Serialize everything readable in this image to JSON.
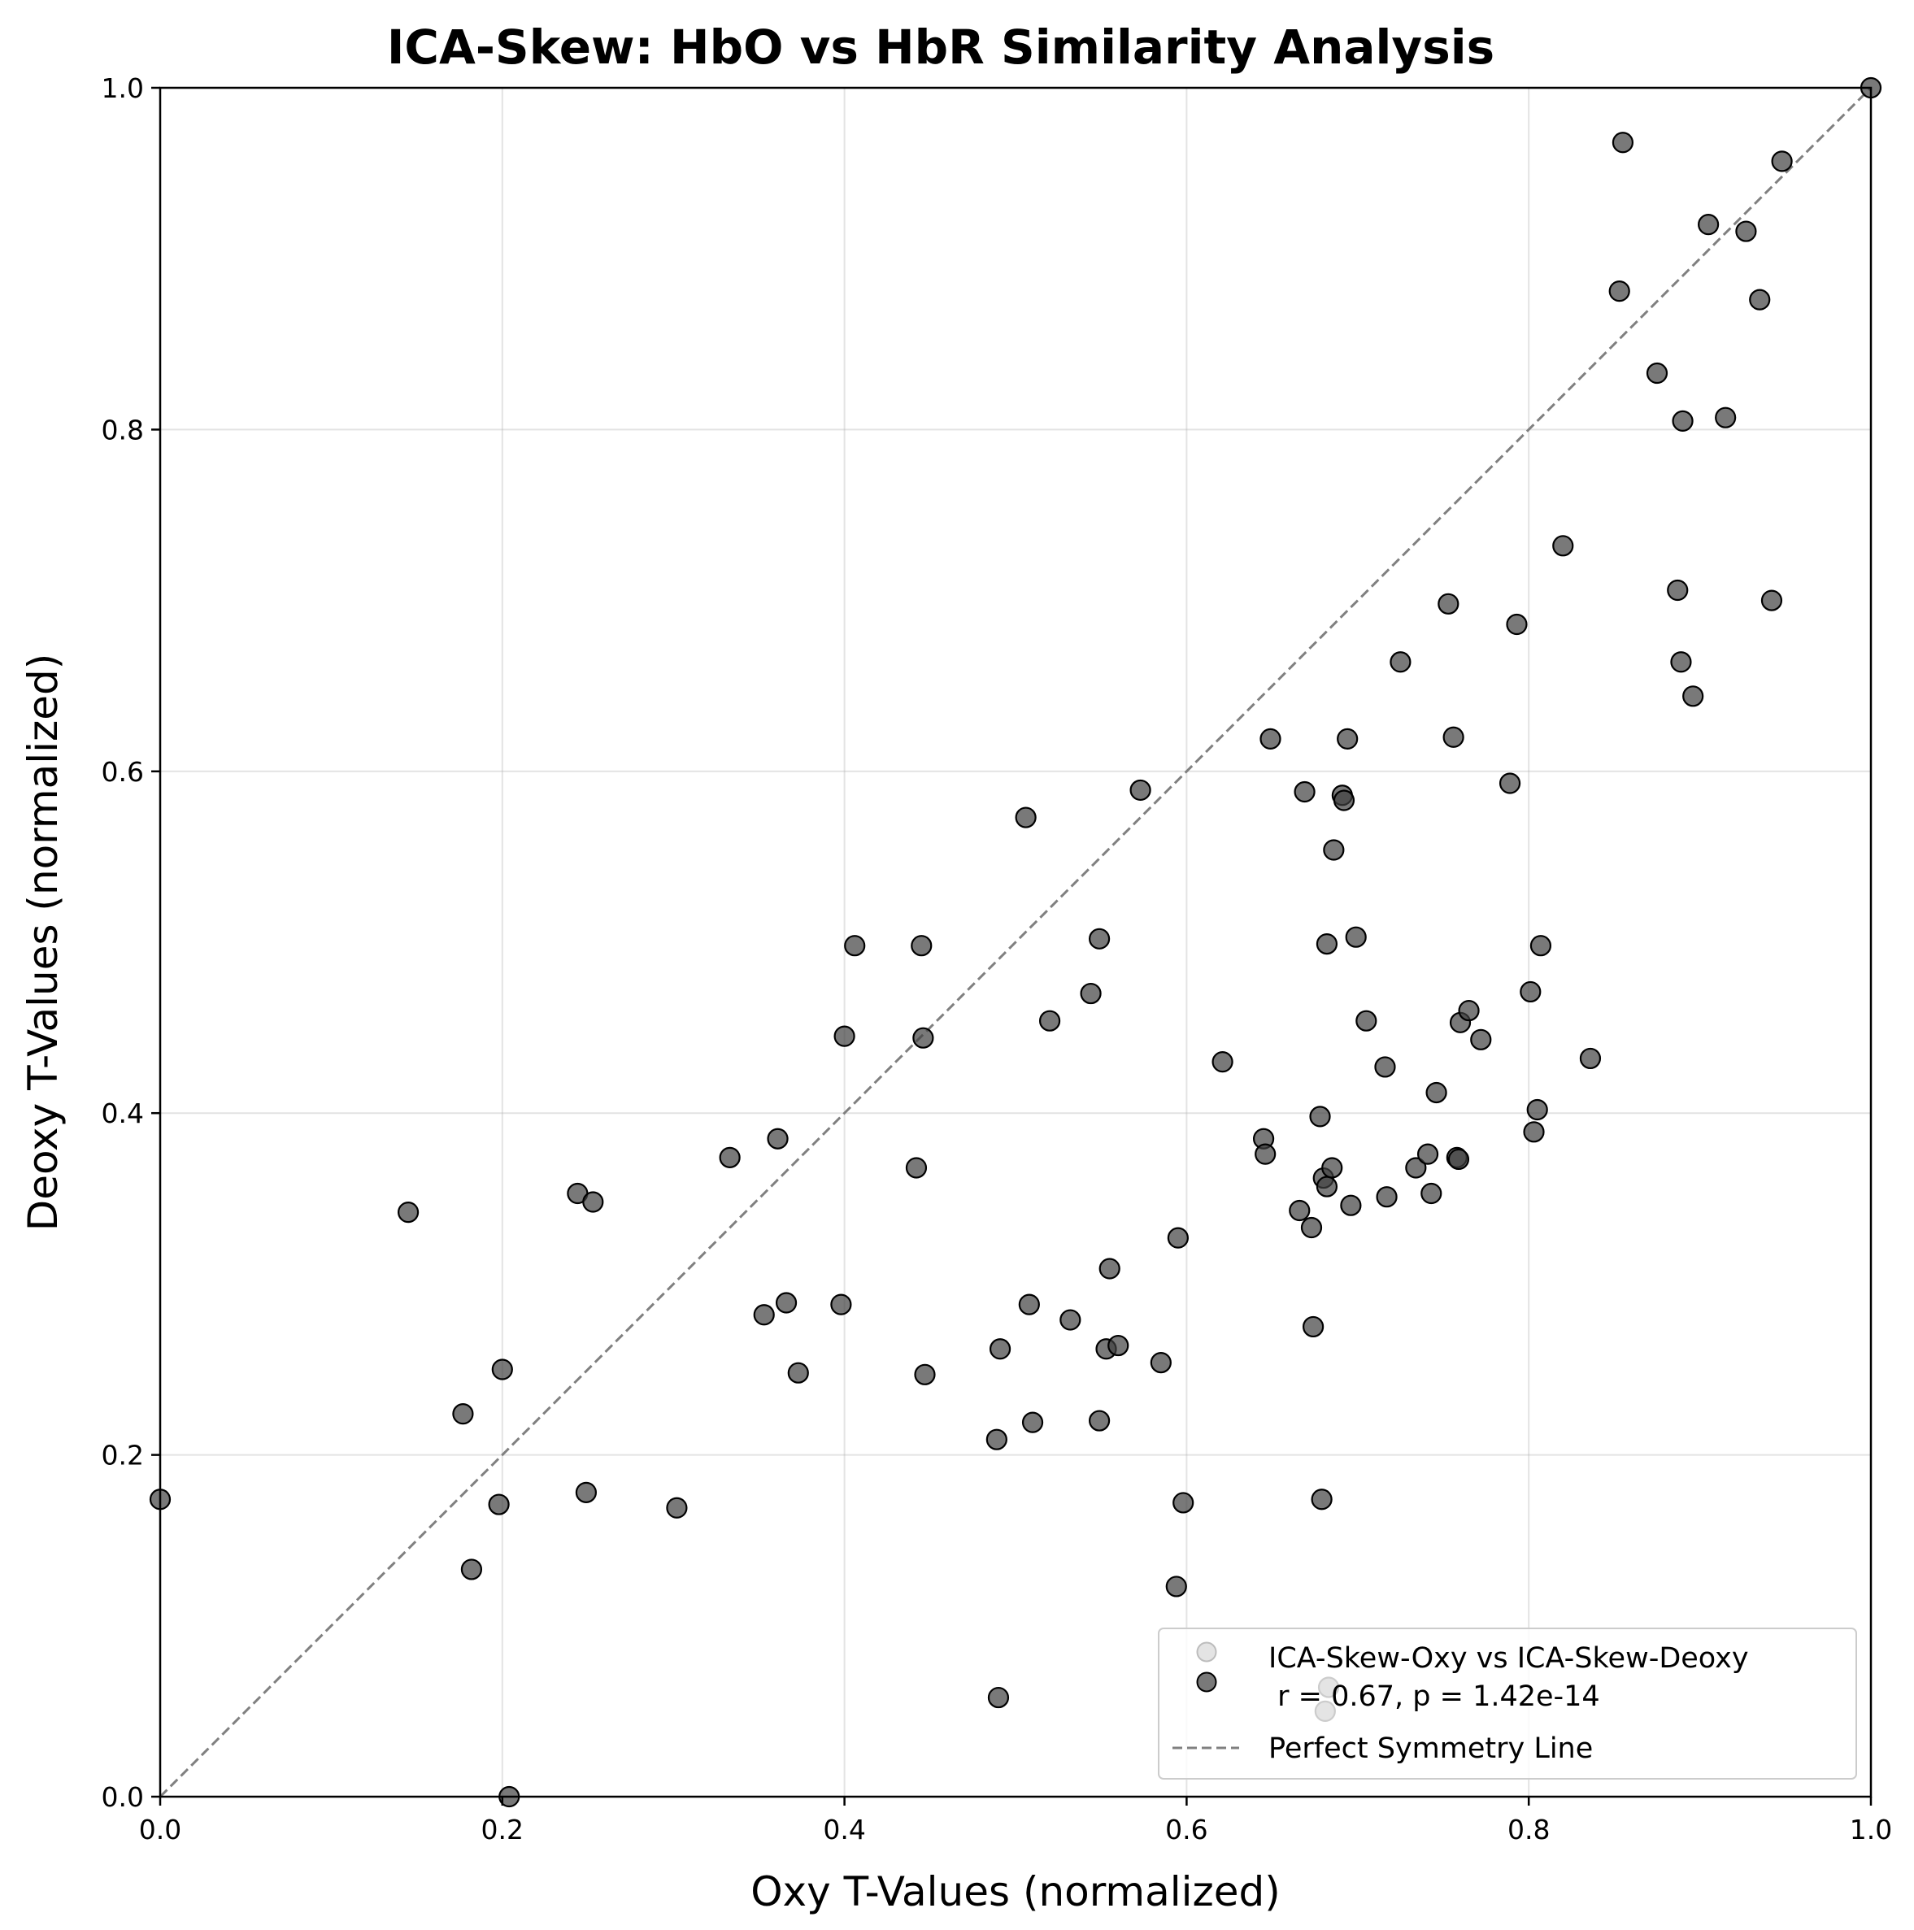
{
  "chart_data": {
    "type": "scatter",
    "title": "ICA-Skew: HbO vs HbR Similarity Analysis",
    "xlabel": "Oxy T-Values (normalized)",
    "ylabel": "Deoxy T-Values (normalized)",
    "xlim": [
      0,
      1
    ],
    "ylim": [
      0,
      1
    ],
    "xticks": [
      "0.0",
      "0.2",
      "0.4",
      "0.6",
      "0.8",
      "1.0"
    ],
    "yticks": [
      "0.0",
      "0.2",
      "0.4",
      "0.6",
      "0.8",
      "1.0"
    ],
    "grid": true,
    "legend_position": "bottom-right",
    "legend": {
      "series_label": "ICA-Skew-Oxy vs ICA-Skew-Deoxy",
      "stats_label": " r = 0.67, p = 1.42e-14",
      "line_label": "Perfect Symmetry Line"
    },
    "point_color": "#404040",
    "point_opacity": 0.7,
    "line_color": "#808080",
    "series": [
      {
        "points": [
          [
            0.0,
            0.174
          ],
          [
            0.145,
            0.342
          ],
          [
            0.177,
            0.224
          ],
          [
            0.182,
            0.133
          ],
          [
            0.198,
            0.171
          ],
          [
            0.2,
            0.25
          ],
          [
            0.204,
            0.0
          ],
          [
            0.244,
            0.353
          ],
          [
            0.249,
            0.178
          ],
          [
            0.253,
            0.348
          ],
          [
            0.302,
            0.169
          ],
          [
            0.333,
            0.374
          ],
          [
            0.353,
            0.282
          ],
          [
            0.361,
            0.385
          ],
          [
            0.366,
            0.289
          ],
          [
            0.373,
            0.248
          ],
          [
            0.398,
            0.288
          ],
          [
            0.4,
            0.445
          ],
          [
            0.406,
            0.498
          ],
          [
            0.442,
            0.368
          ],
          [
            0.445,
            0.498
          ],
          [
            0.446,
            0.444
          ],
          [
            0.447,
            0.247
          ],
          [
            0.489,
            0.209
          ],
          [
            0.49,
            0.058
          ],
          [
            0.491,
            0.262
          ],
          [
            0.506,
            0.573
          ],
          [
            0.508,
            0.288
          ],
          [
            0.51,
            0.219
          ],
          [
            0.52,
            0.454
          ],
          [
            0.532,
            0.279
          ],
          [
            0.544,
            0.47
          ],
          [
            0.549,
            0.502
          ],
          [
            0.549,
            0.22
          ],
          [
            0.553,
            0.262
          ],
          [
            0.555,
            0.309
          ],
          [
            0.56,
            0.264
          ],
          [
            0.573,
            0.589
          ],
          [
            0.585,
            0.254
          ],
          [
            0.594,
            0.123
          ],
          [
            0.595,
            0.327
          ],
          [
            0.598,
            0.172
          ],
          [
            0.621,
            0.43
          ],
          [
            0.645,
            0.385
          ],
          [
            0.646,
            0.376
          ],
          [
            0.649,
            0.619
          ],
          [
            0.666,
            0.343
          ],
          [
            0.669,
            0.588
          ],
          [
            0.673,
            0.333
          ],
          [
            0.674,
            0.275
          ],
          [
            0.678,
            0.398
          ],
          [
            0.679,
            0.174
          ],
          [
            0.68,
            0.362
          ],
          [
            0.681,
            0.05
          ],
          [
            0.682,
            0.499
          ],
          [
            0.682,
            0.357
          ],
          [
            0.683,
            0.064
          ],
          [
            0.685,
            0.368
          ],
          [
            0.686,
            0.554
          ],
          [
            0.691,
            0.586
          ],
          [
            0.692,
            0.583
          ],
          [
            0.694,
            0.619
          ],
          [
            0.696,
            0.346
          ],
          [
            0.699,
            0.503
          ],
          [
            0.705,
            0.454
          ],
          [
            0.716,
            0.427
          ],
          [
            0.717,
            0.351
          ],
          [
            0.725,
            0.664
          ],
          [
            0.734,
            0.368
          ],
          [
            0.741,
            0.376
          ],
          [
            0.743,
            0.353
          ],
          [
            0.746,
            0.412
          ],
          [
            0.753,
            0.698
          ],
          [
            0.756,
            0.62
          ],
          [
            0.758,
            0.374
          ],
          [
            0.759,
            0.373
          ],
          [
            0.76,
            0.453
          ],
          [
            0.765,
            0.46
          ],
          [
            0.772,
            0.443
          ],
          [
            0.789,
            0.593
          ],
          [
            0.793,
            0.686
          ],
          [
            0.801,
            0.471
          ],
          [
            0.803,
            0.389
          ],
          [
            0.805,
            0.402
          ],
          [
            0.807,
            0.498
          ],
          [
            0.82,
            0.732
          ],
          [
            0.836,
            0.432
          ],
          [
            0.853,
            0.881
          ],
          [
            0.855,
            0.968
          ],
          [
            0.875,
            0.833
          ],
          [
            0.887,
            0.706
          ],
          [
            0.889,
            0.664
          ],
          [
            0.89,
            0.805
          ],
          [
            0.896,
            0.644
          ],
          [
            0.905,
            0.92
          ],
          [
            0.915,
            0.807
          ],
          [
            0.927,
            0.916
          ],
          [
            0.935,
            0.876
          ],
          [
            0.942,
            0.7
          ],
          [
            0.948,
            0.957
          ],
          [
            1.0,
            1.0
          ]
        ]
      }
    ]
  }
}
